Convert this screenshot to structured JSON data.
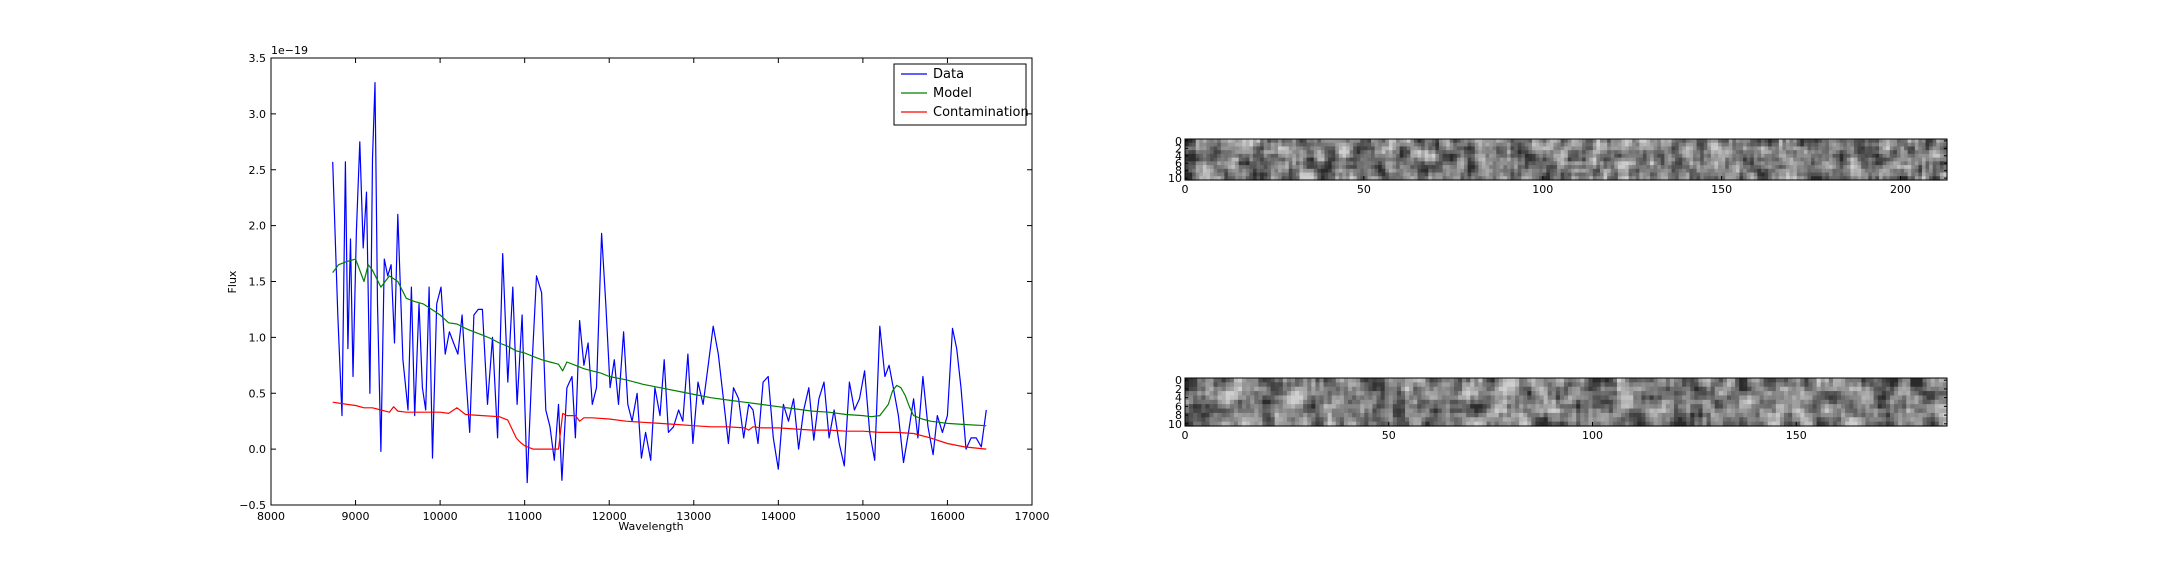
{
  "chart_data": [
    {
      "type": "line",
      "xlabel": "Wavelength",
      "ylabel": "Flux",
      "y_multiplier_label": "1e−19",
      "xlim": [
        8000,
        17000
      ],
      "ylim": [
        -0.5,
        3.5
      ],
      "xticks": [
        "8000",
        "9000",
        "10000",
        "11000",
        "12000",
        "13000",
        "14000",
        "15000",
        "16000",
        "17000"
      ],
      "yticks": [
        "−0.5",
        "0.0",
        "0.5",
        "1.0",
        "1.5",
        "2.0",
        "2.5",
        "3.0",
        "3.5"
      ],
      "legend_position": "top-right",
      "series": [
        {
          "name": "Data",
          "color": "#0000ff",
          "x": [
            8730,
            8790,
            8840,
            8880,
            8910,
            8940,
            8970,
            9010,
            9050,
            9090,
            9130,
            9170,
            9200,
            9230,
            9260,
            9300,
            9340,
            9380,
            9420,
            9460,
            9500,
            9560,
            9620,
            9660,
            9700,
            9750,
            9790,
            9830,
            9870,
            9910,
            9960,
            10010,
            10060,
            10110,
            10160,
            10210,
            10260,
            10300,
            10350,
            10400,
            10450,
            10500,
            10560,
            10620,
            10680,
            10740,
            10800,
            10860,
            10910,
            10970,
            11030,
            11090,
            11140,
            11200,
            11250,
            11300,
            11350,
            11400,
            11440,
            11500,
            11560,
            11600,
            11650,
            11700,
            11750,
            11800,
            11850,
            11910,
            11960,
            12010,
            12060,
            12110,
            12170,
            12220,
            12270,
            12330,
            12380,
            12430,
            12490,
            12540,
            12600,
            12650,
            12700,
            12760,
            12820,
            12870,
            12930,
            12990,
            13050,
            13110,
            13170,
            13230,
            13290,
            13350,
            13410,
            13470,
            13530,
            13590,
            13650,
            13700,
            13760,
            13820,
            13880,
            13940,
            14000,
            14060,
            14120,
            14180,
            14240,
            14300,
            14360,
            14420,
            14480,
            14540,
            14600,
            14660,
            14720,
            14780,
            14840,
            14900,
            14960,
            15020,
            15080,
            15140,
            15200,
            15260,
            15310,
            15360,
            15420,
            15480,
            15540,
            15600,
            15650,
            15710,
            15770,
            15830,
            15880,
            15940,
            16000,
            16060,
            16110,
            16160,
            16220,
            16280,
            16340,
            16400,
            16460
          ],
          "y": [
            2.57,
            1.2,
            0.3,
            2.57,
            0.9,
            1.88,
            0.65,
            1.95,
            2.75,
            1.8,
            2.3,
            0.5,
            2.6,
            3.28,
            1.3,
            -0.02,
            1.7,
            1.55,
            1.65,
            0.95,
            2.1,
            0.8,
            0.35,
            1.45,
            0.3,
            1.3,
            0.55,
            0.35,
            1.45,
            -0.08,
            1.3,
            1.45,
            0.85,
            1.05,
            0.95,
            0.85,
            1.2,
            0.7,
            0.15,
            1.2,
            1.25,
            1.25,
            0.4,
            1.0,
            0.1,
            1.75,
            0.6,
            1.45,
            0.4,
            1.2,
            -0.3,
            0.8,
            1.55,
            1.4,
            0.35,
            0.2,
            -0.1,
            0.4,
            -0.28,
            0.55,
            0.65,
            0.1,
            1.15,
            0.75,
            0.95,
            0.4,
            0.55,
            1.93,
            1.3,
            0.55,
            0.8,
            0.4,
            1.05,
            0.4,
            0.25,
            0.5,
            -0.08,
            0.15,
            -0.1,
            0.55,
            0.3,
            0.8,
            0.15,
            0.2,
            0.35,
            0.25,
            0.85,
            0.05,
            0.6,
            0.4,
            0.75,
            1.1,
            0.85,
            0.45,
            0.05,
            0.55,
            0.45,
            0.1,
            0.4,
            0.35,
            0.05,
            0.6,
            0.65,
            0.1,
            -0.18,
            0.4,
            0.25,
            0.45,
            0.0,
            0.35,
            0.55,
            0.08,
            0.45,
            0.6,
            0.1,
            0.35,
            0.05,
            -0.15,
            0.6,
            0.35,
            0.45,
            0.7,
            0.15,
            -0.1,
            1.1,
            0.65,
            0.75,
            0.55,
            0.3,
            -0.12,
            0.15,
            0.45,
            0.1,
            0.65,
            0.2,
            -0.05,
            0.3,
            0.15,
            0.3,
            1.08,
            0.9,
            0.55,
            0.0,
            0.1,
            0.1,
            0.02,
            0.35
          ]
        },
        {
          "name": "Model",
          "color": "#008000",
          "x": [
            8730,
            8800,
            8900,
            9000,
            9100,
            9150,
            9200,
            9300,
            9400,
            9500,
            9600,
            9700,
            9800,
            9900,
            10000,
            10100,
            10200,
            10300,
            10400,
            10500,
            10600,
            10700,
            10800,
            10900,
            11000,
            11100,
            11200,
            11300,
            11400,
            11450,
            11500,
            11600,
            11700,
            11800,
            11900,
            12000,
            12200,
            12400,
            12600,
            12800,
            13000,
            13200,
            13400,
            13600,
            13800,
            14000,
            14200,
            14400,
            14600,
            14800,
            15000,
            15100,
            15200,
            15300,
            15350,
            15400,
            15450,
            15500,
            15550,
            15600,
            15700,
            15800,
            15900,
            16000,
            16200,
            16460
          ],
          "y": [
            1.58,
            1.65,
            1.68,
            1.7,
            1.5,
            1.65,
            1.6,
            1.45,
            1.55,
            1.5,
            1.35,
            1.32,
            1.3,
            1.25,
            1.2,
            1.13,
            1.12,
            1.08,
            1.05,
            1.02,
            0.99,
            0.95,
            0.92,
            0.88,
            0.86,
            0.83,
            0.8,
            0.78,
            0.76,
            0.7,
            0.78,
            0.75,
            0.72,
            0.7,
            0.68,
            0.65,
            0.62,
            0.58,
            0.55,
            0.52,
            0.49,
            0.46,
            0.44,
            0.42,
            0.4,
            0.38,
            0.36,
            0.34,
            0.33,
            0.31,
            0.3,
            0.29,
            0.3,
            0.4,
            0.52,
            0.57,
            0.55,
            0.48,
            0.38,
            0.3,
            0.27,
            0.25,
            0.24,
            0.23,
            0.22,
            0.21
          ]
        },
        {
          "name": "Contamination",
          "color": "#ff0000",
          "x": [
            8730,
            8900,
            9000,
            9100,
            9200,
            9300,
            9400,
            9450,
            9500,
            9600,
            9800,
            10000,
            10100,
            10200,
            10300,
            10500,
            10700,
            10800,
            10850,
            10900,
            10950,
            11000,
            11100,
            11200,
            11300,
            11400,
            11450,
            11500,
            11600,
            11650,
            11700,
            11800,
            12000,
            12200,
            12400,
            12600,
            12800,
            13000,
            13200,
            13400,
            13600,
            13650,
            13700,
            13800,
            14000,
            14200,
            14400,
            14600,
            14800,
            15000,
            15200,
            15400,
            15600,
            15800,
            16000,
            16200,
            16460
          ],
          "y": [
            0.42,
            0.4,
            0.39,
            0.37,
            0.37,
            0.35,
            0.33,
            0.38,
            0.34,
            0.33,
            0.33,
            0.33,
            0.32,
            0.37,
            0.31,
            0.3,
            0.29,
            0.26,
            0.18,
            0.1,
            0.06,
            0.03,
            0.0,
            0.0,
            0.0,
            0.0,
            0.32,
            0.3,
            0.3,
            0.25,
            0.28,
            0.28,
            0.27,
            0.25,
            0.24,
            0.23,
            0.22,
            0.21,
            0.2,
            0.2,
            0.19,
            0.17,
            0.2,
            0.19,
            0.19,
            0.18,
            0.17,
            0.17,
            0.16,
            0.16,
            0.15,
            0.15,
            0.14,
            0.1,
            0.05,
            0.02,
            0.0
          ]
        }
      ]
    },
    {
      "type": "heatmap",
      "colormap": "gray",
      "xlim": [
        0,
        213
      ],
      "ylim": [
        11,
        0
      ],
      "xticks": [
        "0",
        "50",
        "100",
        "150",
        "200"
      ],
      "yticks": [
        "0",
        "2",
        "4",
        "6",
        "8",
        "10"
      ]
    },
    {
      "type": "heatmap",
      "colormap": "gray",
      "xlim": [
        0,
        187
      ],
      "ylim": [
        11,
        0
      ],
      "xticks": [
        "0",
        "50",
        "100",
        "150"
      ],
      "yticks": [
        "0",
        "2",
        "4",
        "6",
        "8",
        "10"
      ]
    }
  ]
}
